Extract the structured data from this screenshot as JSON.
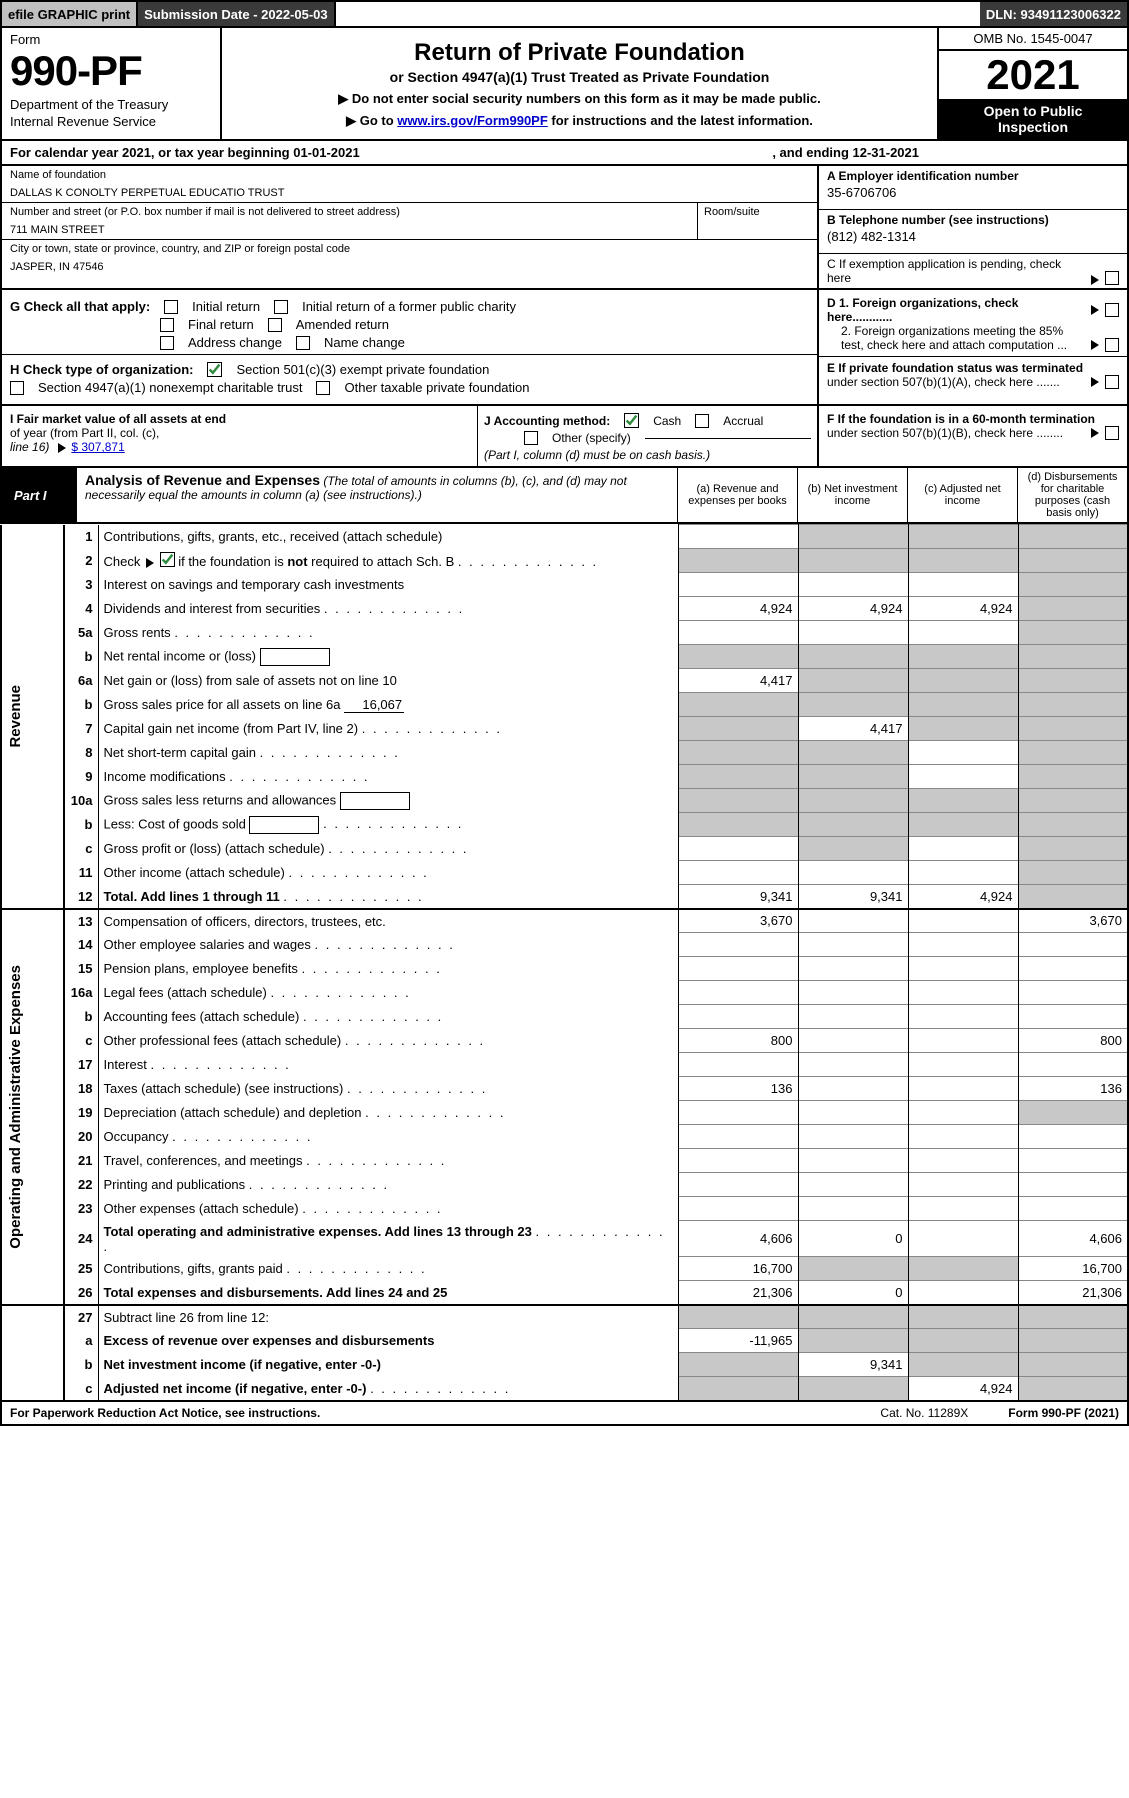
{
  "colors": {
    "black": "#000000",
    "white": "#ffffff",
    "topbar_gray": "#c0c0c0",
    "topbar_dark": "#3a3a3a",
    "shade": "#c8c8c8",
    "link": "#0000cc",
    "check_green": "#2e8b3d"
  },
  "topbar": {
    "efile_prefix": "efile",
    "efile_graphic": "GRAPHIC",
    "efile_print": "print",
    "submission_label": "Submission Date - 2022-05-03",
    "dln": "DLN: 93491123006322"
  },
  "header": {
    "form_word": "Form",
    "form_number": "990-PF",
    "dept1": "Department of the Treasury",
    "dept2": "Internal Revenue Service",
    "title": "Return of Private Foundation",
    "subtitle": "or Section 4947(a)(1) Trust Treated as Private Foundation",
    "instr1": "▶ Do not enter social security numbers on this form as it may be made public.",
    "instr2_pre": "▶ Go to ",
    "instr2_link": "www.irs.gov/Form990PF",
    "instr2_post": " for instructions and the latest information.",
    "omb": "OMB No. 1545-0047",
    "year": "2021",
    "open1": "Open to Public",
    "open2": "Inspection"
  },
  "calyear": {
    "left": "For calendar year 2021, or tax year beginning 01-01-2021",
    "right": ", and ending 12-31-2021"
  },
  "entity": {
    "name_label": "Name of foundation",
    "name": "DALLAS K CONOLTY PERPETUAL EDUCATIO TRUST",
    "addr_label": "Number and street (or P.O. box number if mail is not delivered to street address)",
    "addr": "711 MAIN STREET",
    "room_label": "Room/suite",
    "city_label": "City or town, state or province, country, and ZIP or foreign postal code",
    "city": "JASPER, IN  47546",
    "ein_label": "A Employer identification number",
    "ein": "35-6706706",
    "tel_label": "B Telephone number (see instructions)",
    "tel": "(812) 482-1314",
    "c_label": "C If exemption application is pending, check here"
  },
  "g": {
    "label": "G Check all that apply:",
    "initial": "Initial return",
    "initial_former": "Initial return of a former public charity",
    "final": "Final return",
    "amended": "Amended return",
    "addr_change": "Address change",
    "name_change": "Name change"
  },
  "h": {
    "label": "H Check type of organization:",
    "s501c3": "Section 501(c)(3) exempt private foundation",
    "s4947": "Section 4947(a)(1) nonexempt charitable trust",
    "other_taxable": "Other taxable private foundation"
  },
  "d": {
    "d1": "D 1. Foreign organizations, check here............",
    "d2a": "2. Foreign organizations meeting the 85%",
    "d2b": "test, check here and attach computation ...",
    "e1": "E  If private foundation status was terminated",
    "e2": "under section 507(b)(1)(A), check here .......",
    "f1": "F  If the foundation is in a 60-month termination",
    "f2": "under section 507(b)(1)(B), check here ........"
  },
  "i": {
    "label1": "I Fair market value of all assets at end",
    "label2": "of year (from Part II, col. (c),",
    "label3": "line 16)",
    "arrow_amt": "$  307,871"
  },
  "j": {
    "label": "J Accounting method:",
    "cash": "Cash",
    "accrual": "Accrual",
    "other": "Other (specify)",
    "note": "(Part I, column (d) must be on cash basis.)"
  },
  "part1": {
    "tag": "Part I",
    "title": "Analysis of Revenue and Expenses",
    "note": " (The total of amounts in columns (b), (c), and (d) may not necessarily equal the amounts in column (a) (see instructions).)",
    "col_a": "(a)   Revenue and expenses per books",
    "col_b": "(b)   Net investment income",
    "col_c": "(c)   Adjusted net income",
    "col_d": "(d)  Disbursements for charitable purposes (cash basis only)"
  },
  "sections": {
    "revenue": "Revenue",
    "expenses": "Operating and Administrative Expenses"
  },
  "rows": [
    {
      "n": "1",
      "d": "Contributions, gifts, grants, etc., received (attach schedule)",
      "a": "",
      "b": "shade",
      "c": "shade",
      "dcol": "shade"
    },
    {
      "n": "2",
      "d": "Check ▶ [✓] if the foundation is not required to attach Sch. B",
      "dots": true,
      "a": "shade",
      "b": "shade",
      "c": "shade",
      "dcol": "shade",
      "check_green": true
    },
    {
      "n": "3",
      "d": "Interest on savings and temporary cash investments",
      "a": "",
      "b": "",
      "c": "",
      "dcol": "shade"
    },
    {
      "n": "4",
      "d": "Dividends and interest from securities",
      "dots": true,
      "a": "4,924",
      "b": "4,924",
      "c": "4,924",
      "dcol": "shade"
    },
    {
      "n": "5a",
      "d": "Gross rents",
      "dots": true,
      "a": "",
      "b": "",
      "c": "",
      "dcol": "shade"
    },
    {
      "n": "b",
      "d": "Net rental income or (loss)",
      "box": true,
      "a": "shade",
      "b": "shade",
      "c": "shade",
      "dcol": "shade"
    },
    {
      "n": "6a",
      "d": "Net gain or (loss) from sale of assets not on line 10",
      "a": "4,417",
      "b": "shade",
      "c": "shade",
      "dcol": "shade"
    },
    {
      "n": "b",
      "d": "Gross sales price for all assets on line 6a",
      "inline": "16,067",
      "a": "shade",
      "b": "shade",
      "c": "shade",
      "dcol": "shade"
    },
    {
      "n": "7",
      "d": "Capital gain net income (from Part IV, line 2)",
      "dots": true,
      "a": "shade",
      "b": "4,417",
      "c": "shade",
      "dcol": "shade"
    },
    {
      "n": "8",
      "d": "Net short-term capital gain",
      "dots": true,
      "a": "shade",
      "b": "shade",
      "c": "",
      "dcol": "shade"
    },
    {
      "n": "9",
      "d": "Income modifications",
      "dots": true,
      "a": "shade",
      "b": "shade",
      "c": "",
      "dcol": "shade"
    },
    {
      "n": "10a",
      "d": "Gross sales less returns and allowances",
      "box": true,
      "a": "shade",
      "b": "shade",
      "c": "shade",
      "dcol": "shade"
    },
    {
      "n": "b",
      "d": "Less: Cost of goods sold",
      "dots": true,
      "box": true,
      "a": "shade",
      "b": "shade",
      "c": "shade",
      "dcol": "shade"
    },
    {
      "n": "c",
      "d": "Gross profit or (loss) (attach schedule)",
      "dots": true,
      "a": "",
      "b": "shade",
      "c": "",
      "dcol": "shade"
    },
    {
      "n": "11",
      "d": "Other income (attach schedule)",
      "dots": true,
      "a": "",
      "b": "",
      "c": "",
      "dcol": "shade"
    },
    {
      "n": "12",
      "d": "Total. Add lines 1 through 11",
      "dots": true,
      "bold": true,
      "a": "9,341",
      "b": "9,341",
      "c": "4,924",
      "dcol": "shade"
    }
  ],
  "exp_rows": [
    {
      "n": "13",
      "d": "Compensation of officers, directors, trustees, etc.",
      "a": "3,670",
      "b": "",
      "c": "",
      "dcol": "3,670"
    },
    {
      "n": "14",
      "d": "Other employee salaries and wages",
      "dots": true,
      "a": "",
      "b": "",
      "c": "",
      "dcol": ""
    },
    {
      "n": "15",
      "d": "Pension plans, employee benefits",
      "dots": true,
      "a": "",
      "b": "",
      "c": "",
      "dcol": ""
    },
    {
      "n": "16a",
      "d": "Legal fees (attach schedule)",
      "dots": true,
      "a": "",
      "b": "",
      "c": "",
      "dcol": ""
    },
    {
      "n": "b",
      "d": "Accounting fees (attach schedule)",
      "dots": true,
      "a": "",
      "b": "",
      "c": "",
      "dcol": ""
    },
    {
      "n": "c",
      "d": "Other professional fees (attach schedule)",
      "dots": true,
      "a": "800",
      "b": "",
      "c": "",
      "dcol": "800"
    },
    {
      "n": "17",
      "d": "Interest",
      "dots": true,
      "a": "",
      "b": "",
      "c": "",
      "dcol": ""
    },
    {
      "n": "18",
      "d": "Taxes (attach schedule) (see instructions)",
      "dots": true,
      "a": "136",
      "b": "",
      "c": "",
      "dcol": "136"
    },
    {
      "n": "19",
      "d": "Depreciation (attach schedule) and depletion",
      "dots": true,
      "a": "",
      "b": "",
      "c": "",
      "dcol": "shade"
    },
    {
      "n": "20",
      "d": "Occupancy",
      "dots": true,
      "a": "",
      "b": "",
      "c": "",
      "dcol": ""
    },
    {
      "n": "21",
      "d": "Travel, conferences, and meetings",
      "dots": true,
      "a": "",
      "b": "",
      "c": "",
      "dcol": ""
    },
    {
      "n": "22",
      "d": "Printing and publications",
      "dots": true,
      "a": "",
      "b": "",
      "c": "",
      "dcol": ""
    },
    {
      "n": "23",
      "d": "Other expenses (attach schedule)",
      "dots": true,
      "a": "",
      "b": "",
      "c": "",
      "dcol": ""
    },
    {
      "n": "24",
      "d": "Total operating and administrative expenses. Add lines 13 through 23",
      "dots": true,
      "bold": true,
      "a": "4,606",
      "b": "0",
      "c": "",
      "dcol": "4,606"
    },
    {
      "n": "25",
      "d": "Contributions, gifts, grants paid",
      "dots": true,
      "a": "16,700",
      "b": "shade",
      "c": "shade",
      "dcol": "16,700"
    },
    {
      "n": "26",
      "d": "Total expenses and disbursements. Add lines 24 and 25",
      "bold": true,
      "a": "21,306",
      "b": "0",
      "c": "",
      "dcol": "21,306"
    }
  ],
  "bottom_rows": [
    {
      "n": "27",
      "d": "Subtract line 26 from line 12:",
      "a": "shade",
      "b": "shade",
      "c": "shade",
      "dcol": "shade"
    },
    {
      "n": "a",
      "d": "Excess of revenue over expenses and disbursements",
      "bold": true,
      "a": "-11,965",
      "b": "shade",
      "c": "shade",
      "dcol": "shade"
    },
    {
      "n": "b",
      "d": "Net investment income (if negative, enter -0-)",
      "bold": true,
      "a": "shade",
      "b": "9,341",
      "c": "shade",
      "dcol": "shade"
    },
    {
      "n": "c",
      "d": "Adjusted net income (if negative, enter -0-)",
      "dots": true,
      "bold": true,
      "a": "shade",
      "b": "shade",
      "c": "4,924",
      "dcol": "shade"
    }
  ],
  "footer": {
    "left": "For Paperwork Reduction Act Notice, see instructions.",
    "cat": "Cat. No. 11289X",
    "form": "Form 990-PF (2021)"
  }
}
